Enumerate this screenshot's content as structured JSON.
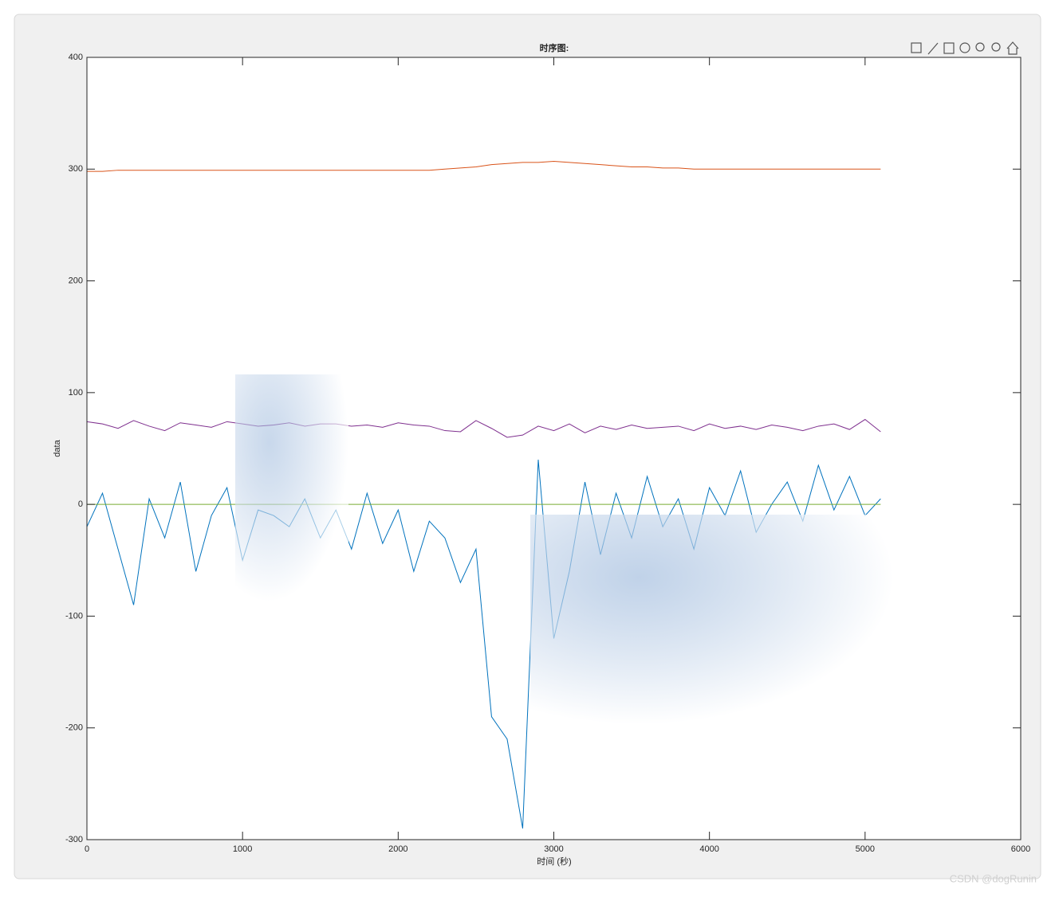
{
  "chart_data": {
    "type": "line",
    "title": "时序图:",
    "x_label": "时间 (秒)",
    "y_label": "data",
    "watermark": "CSDN @dogRunin",
    "x": [
      0,
      100,
      200,
      300,
      400,
      500,
      600,
      700,
      800,
      900,
      1000,
      1100,
      1200,
      1300,
      1400,
      1500,
      1600,
      1700,
      1800,
      1900,
      2000,
      2100,
      2200,
      2300,
      2400,
      2500,
      2600,
      2700,
      2800,
      2900,
      3000,
      3100,
      3200,
      3300,
      3400,
      3500,
      3600,
      3700,
      3800,
      3900,
      4000,
      4100,
      4200,
      4300,
      4400,
      4500,
      4600,
      4700,
      4800,
      4900,
      5000,
      5100
    ],
    "series": [
      {
        "color": "#0072BD",
        "values": [
          -20,
          10,
          -40,
          -90,
          5,
          -30,
          20,
          -60,
          -10,
          15,
          -50,
          -5,
          -10,
          -20,
          5,
          -30,
          -5,
          -40,
          10,
          -35,
          -5,
          -60,
          -15,
          -30,
          -70,
          -40,
          -190,
          -210,
          -290,
          40,
          -120,
          -60,
          20,
          -45,
          10,
          -30,
          25,
          -20,
          5,
          -40,
          15,
          -10,
          30,
          -25,
          0,
          20,
          -15,
          35,
          -5,
          25,
          -10,
          5
        ]
      },
      {
        "color": "#D95319",
        "values": [
          298,
          298,
          299,
          299,
          299,
          299,
          299,
          299,
          299,
          299,
          299,
          299,
          299,
          299,
          299,
          299,
          299,
          299,
          299,
          299,
          299,
          299,
          299,
          300,
          301,
          302,
          304,
          305,
          306,
          306,
          307,
          306,
          305,
          304,
          303,
          302,
          302,
          301,
          301,
          300,
          300,
          300,
          300,
          300,
          300,
          300,
          300,
          300,
          300,
          300,
          300,
          300
        ]
      },
      {
        "color": "#77AC30",
        "values": [
          0,
          0,
          0,
          0,
          0,
          0,
          0,
          0,
          0,
          0,
          0,
          0,
          0,
          0,
          0,
          0,
          0,
          0,
          0,
          0,
          0,
          0,
          0,
          0,
          0,
          0,
          0,
          0,
          0,
          0,
          0,
          0,
          0,
          0,
          0,
          0,
          0,
          0,
          0,
          0,
          0,
          0,
          0,
          0,
          0,
          0,
          0,
          0,
          0,
          0,
          0,
          0
        ]
      },
      {
        "color": "#7E2F8E",
        "values": [
          74,
          72,
          68,
          75,
          70,
          66,
          73,
          71,
          69,
          74,
          72,
          70,
          71,
          73,
          70,
          72,
          72,
          70,
          71,
          69,
          73,
          71,
          70,
          66,
          65,
          75,
          68,
          60,
          62,
          70,
          66,
          72,
          64,
          70,
          67,
          71,
          68,
          69,
          70,
          66,
          72,
          68,
          70,
          67,
          71,
          69,
          66,
          70,
          72,
          67,
          76,
          65
        ]
      }
    ],
    "xlim": [
      0,
      6000
    ],
    "xticks": [
      0,
      1000,
      2000,
      3000,
      4000,
      5000,
      6000
    ],
    "ylim": [
      -300,
      400
    ],
    "yticks": [
      -300,
      -200,
      -100,
      0,
      100,
      200,
      300,
      400
    ]
  }
}
